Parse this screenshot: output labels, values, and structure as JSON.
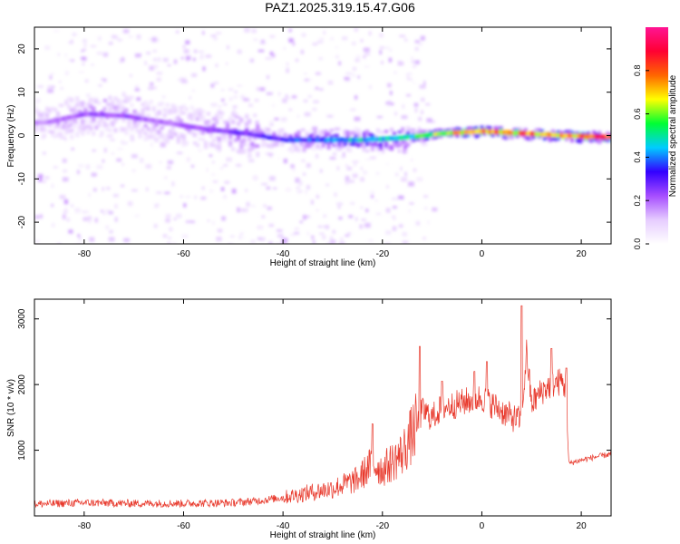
{
  "title": "PAZ1.2025.319.15.47.G06",
  "chart_data": [
    {
      "type": "heatmap",
      "xlabel": "Height of straight line (km)",
      "ylabel": "Frequency (Hz)",
      "xlim": [
        -90,
        26
      ],
      "ylim": [
        -25,
        25
      ],
      "xticks": [
        -80,
        -60,
        -40,
        -20,
        0,
        20
      ],
      "yticks": [
        -20,
        -10,
        0,
        10,
        20
      ],
      "colorbar": {
        "label": "Normalized spectral amplitude",
        "range": [
          0,
          1
        ],
        "ticks": [
          "0.0",
          "0.2",
          "0.4",
          "0.6",
          "0.8"
        ],
        "colors": [
          "#ffffff",
          "#e6ccff",
          "#a64dff",
          "#3300ff",
          "#00ccff",
          "#00ff33",
          "#ffff00",
          "#ff6600",
          "#ff0033",
          "#ff1493"
        ]
      },
      "ridge": [
        {
          "x": -88,
          "f": 3.0,
          "amp": 0.2
        },
        {
          "x": -80,
          "f": 5.0,
          "amp": 0.25
        },
        {
          "x": -72,
          "f": 4.5,
          "amp": 0.25
        },
        {
          "x": -64,
          "f": 3.0,
          "amp": 0.22
        },
        {
          "x": -56,
          "f": 1.5,
          "amp": 0.25
        },
        {
          "x": -48,
          "f": 0.5,
          "amp": 0.3
        },
        {
          "x": -40,
          "f": -1.0,
          "amp": 0.35
        },
        {
          "x": -32,
          "f": -1.0,
          "amp": 0.45
        },
        {
          "x": -24,
          "f": -1.0,
          "amp": 0.5
        },
        {
          "x": -16,
          "f": -0.5,
          "amp": 0.55
        },
        {
          "x": -8,
          "f": 0.5,
          "amp": 0.7
        },
        {
          "x": 0,
          "f": 1.0,
          "amp": 0.85
        },
        {
          "x": 8,
          "f": 0.5,
          "amp": 0.8
        },
        {
          "x": 16,
          "f": 0.0,
          "amp": 0.8
        },
        {
          "x": 24,
          "f": -0.3,
          "amp": 0.9
        }
      ]
    },
    {
      "type": "line",
      "xlabel": "Height of straight line (km)",
      "ylabel": "SNR (10 * v/v)",
      "xlim": [
        -90,
        26
      ],
      "ylim": [
        0,
        3300
      ],
      "xticks": [
        -80,
        -60,
        -40,
        -20,
        0,
        20
      ],
      "yticks": [
        1000,
        2000,
        3000
      ],
      "color": "#e8392c",
      "series": [
        {
          "name": "SNR",
          "x": [
            -90,
            -80,
            -70,
            -60,
            -50,
            -45,
            -40,
            -35,
            -30,
            -25,
            -22,
            -20,
            -16,
            -13,
            -12,
            -10,
            -8,
            -5,
            -3,
            0,
            2,
            4,
            6,
            8,
            9,
            10,
            12,
            14,
            16,
            16.8,
            17.5,
            20,
            23,
            26
          ],
          "y": [
            180,
            200,
            190,
            190,
            200,
            230,
            280,
            350,
            420,
            550,
            800,
            700,
            950,
            1400,
            1600,
            1500,
            1650,
            1700,
            1750,
            1800,
            1700,
            1600,
            1500,
            1450,
            2500,
            1700,
            1900,
            2000,
            2050,
            1950,
            800,
            850,
            900,
            940
          ]
        }
      ],
      "peaks": [
        {
          "x": 8.0,
          "y": 3200
        },
        {
          "x": -12.5,
          "y": 2580
        },
        {
          "x": 14.0,
          "y": 2550
        },
        {
          "x": 1.0,
          "y": 2350
        },
        {
          "x": -1.5,
          "y": 2200
        },
        {
          "x": 17.0,
          "y": 2250
        },
        {
          "x": -22.0,
          "y": 1400
        },
        {
          "x": -8.0,
          "y": 2050
        }
      ]
    }
  ]
}
